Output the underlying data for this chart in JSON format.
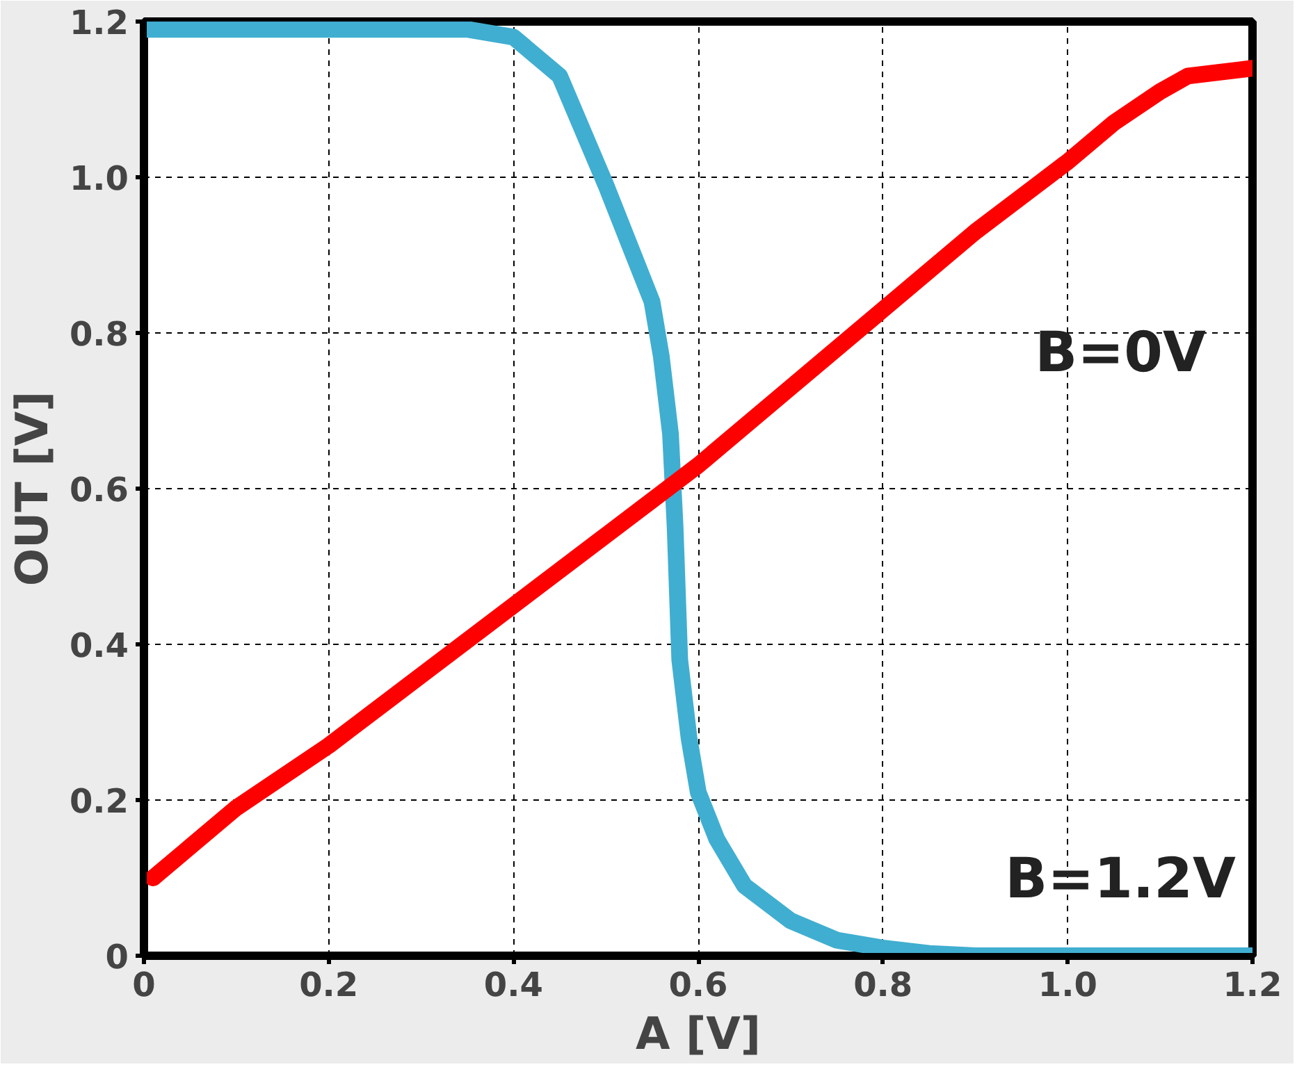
{
  "chart_data": {
    "type": "line",
    "xlabel": "A [V]",
    "ylabel": "OUT [V]",
    "xlim": [
      0,
      1.2
    ],
    "ylim": [
      0,
      1.2
    ],
    "xticks": [
      0,
      0.2,
      0.4,
      0.6,
      0.8,
      {
        "value": 1.0,
        "label": "1.0"
      },
      1.2
    ],
    "yticks": [
      0,
      0.2,
      0.4,
      0.6,
      0.8,
      {
        "value": 1.0,
        "label": "1.0"
      },
      1.2
    ],
    "grid": true,
    "line_style": "solid",
    "series": [
      {
        "name": "B=1.2V",
        "color": "#40aed0",
        "x": [
          0,
          0.1,
          0.2,
          0.3,
          0.35,
          0.4,
          0.45,
          0.5,
          0.53,
          0.55,
          0.56,
          0.57,
          0.575,
          0.58,
          0.59,
          0.6,
          0.62,
          0.65,
          0.7,
          0.75,
          0.8,
          0.85,
          0.9,
          1.0,
          1.1,
          1.2
        ],
        "values": [
          1.19,
          1.19,
          1.19,
          1.19,
          1.19,
          1.18,
          1.13,
          0.99,
          0.9,
          0.84,
          0.77,
          0.67,
          0.55,
          0.38,
          0.28,
          0.21,
          0.15,
          0.09,
          0.045,
          0.02,
          0.01,
          0.003,
          0,
          0,
          0,
          0
        ]
      },
      {
        "name": "B=0V",
        "color": "#ff0000",
        "x": [
          0.01,
          0.05,
          0.1,
          0.2,
          0.3,
          0.4,
          0.5,
          0.6,
          0.7,
          0.8,
          0.9,
          1.0,
          1.05,
          1.1,
          1.13,
          1.2
        ],
        "values": [
          0.1,
          0.14,
          0.19,
          0.27,
          0.36,
          0.45,
          0.54,
          0.63,
          0.73,
          0.83,
          0.93,
          1.02,
          1.07,
          1.11,
          1.13,
          1.14
        ]
      }
    ]
  }
}
